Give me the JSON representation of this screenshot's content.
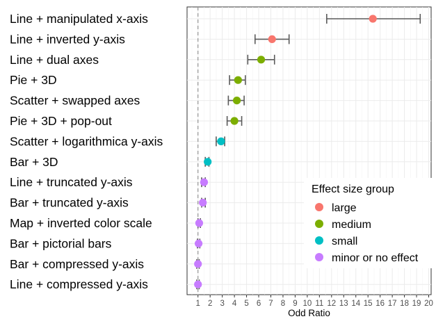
{
  "chart_data": {
    "type": "scatter",
    "subtype": "forest-plot",
    "title": "",
    "xlabel": "Odd Ratio",
    "ylabel": "",
    "xlim": [
      0.1,
      20.2
    ],
    "xticks": [
      1,
      2,
      3,
      4,
      5,
      6,
      7,
      8,
      9,
      10,
      11,
      12,
      13,
      14,
      15,
      16,
      17,
      18,
      19,
      20
    ],
    "reference_line": 1,
    "grid": true,
    "legend_position": "bottom-right",
    "legend_title": "Effect size group",
    "groups": [
      {
        "name": "large",
        "color": "#F8766D"
      },
      {
        "name": "medium",
        "color": "#7CAE00"
      },
      {
        "name": "small",
        "color": "#00BFC4"
      },
      {
        "name": "minor or no effect",
        "color": "#C77CFF"
      }
    ],
    "rows": [
      {
        "label": "Line + manipulated x-axis",
        "or": 15.4,
        "lo": 11.6,
        "hi": 19.3,
        "group": "large"
      },
      {
        "label": "Line + inverted y-axis",
        "or": 7.1,
        "lo": 5.7,
        "hi": 8.5,
        "group": "large"
      },
      {
        "label": "Line + dual axes",
        "or": 6.2,
        "lo": 5.1,
        "hi": 7.3,
        "group": "medium"
      },
      {
        "label": "Pie + 3D",
        "or": 4.3,
        "lo": 3.6,
        "hi": 4.9,
        "group": "medium"
      },
      {
        "label": "Scatter + swapped axes",
        "or": 4.2,
        "lo": 3.5,
        "hi": 4.8,
        "group": "medium"
      },
      {
        "label": "Pie + 3D + pop-out",
        "or": 4.0,
        "lo": 3.4,
        "hi": 4.6,
        "group": "medium"
      },
      {
        "label": "Scatter + logarithmica y-axis",
        "or": 2.9,
        "lo": 2.5,
        "hi": 3.2,
        "group": "small"
      },
      {
        "label": "Bar + 3D",
        "or": 1.8,
        "lo": 1.6,
        "hi": 1.9,
        "group": "small"
      },
      {
        "label": "Line + truncated y-axis",
        "or": 1.5,
        "lo": 1.3,
        "hi": 1.6,
        "group": "minor or no effect"
      },
      {
        "label": "Bar + truncated y-axis",
        "or": 1.4,
        "lo": 1.3,
        "hi": 1.6,
        "group": "minor or no effect"
      },
      {
        "label": "Map + inverted color scale",
        "or": 1.1,
        "lo": 1.0,
        "hi": 1.2,
        "group": "minor or no effect"
      },
      {
        "label": "Bar + pictorial bars",
        "or": 1.05,
        "lo": 0.95,
        "hi": 1.15,
        "group": "minor or no effect"
      },
      {
        "label": "Bar + compressed y-axis",
        "or": 1.0,
        "lo": 0.9,
        "hi": 1.1,
        "group": "minor or no effect"
      },
      {
        "label": "Line + compressed y-axis",
        "or": 1.0,
        "lo": 0.9,
        "hi": 1.1,
        "group": "minor or no effect"
      }
    ]
  }
}
